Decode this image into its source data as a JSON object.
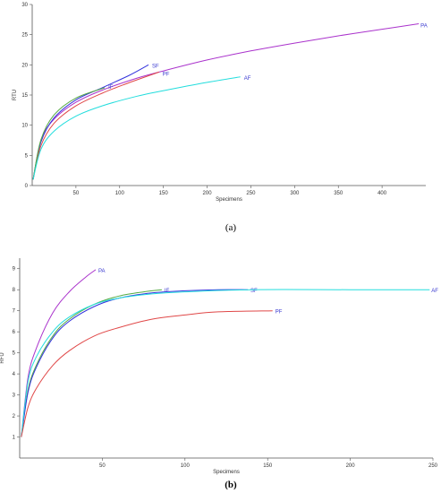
{
  "chart_data": [
    {
      "type": "line",
      "panel_label": "(a)",
      "title": "",
      "xlabel": "Specimens",
      "ylabel": "RTU",
      "xlim": [
        0,
        450
      ],
      "ylim": [
        0,
        30
      ],
      "x_ticks": [
        50,
        100,
        150,
        200,
        250,
        300,
        350,
        400
      ],
      "y_ticks": [
        0,
        5,
        10,
        15,
        20,
        25,
        30
      ],
      "grid": false,
      "legend": "none",
      "series": [
        {
          "name": "PA",
          "color": "#aa33cc",
          "x": [
            1,
            10,
            25,
            50,
            80,
            120,
            150,
            200,
            250,
            300,
            350,
            400,
            442
          ],
          "y": [
            1,
            7.5,
            11,
            13.8,
            15.8,
            17.8,
            19,
            20.8,
            22.3,
            23.6,
            24.8,
            25.9,
            26.8
          ]
        },
        {
          "name": "SF",
          "color": "#3333dd",
          "x": [
            1,
            10,
            25,
            50,
            80,
            110,
            133
          ],
          "y": [
            1,
            7.2,
            11.2,
            14.2,
            16.2,
            18.2,
            20
          ]
        },
        {
          "name": "PF",
          "color": "#e04848",
          "x": [
            1,
            10,
            25,
            50,
            80,
            110,
            145
          ],
          "y": [
            1,
            6.6,
            10.3,
            13.2,
            15.3,
            17,
            18.8
          ]
        },
        {
          "name": "IF",
          "color": "#55aa44",
          "x": [
            1,
            10,
            25,
            50,
            83
          ],
          "y": [
            1,
            7.6,
            11.7,
            14.5,
            16.2
          ]
        },
        {
          "name": "AF",
          "color": "#22dddd",
          "x": [
            1,
            10,
            25,
            50,
            80,
            120,
            160,
            200,
            238
          ],
          "y": [
            1,
            6,
            9,
            11.5,
            13.2,
            14.8,
            16,
            17.1,
            18
          ]
        }
      ]
    },
    {
      "type": "line",
      "panel_label": "(b)",
      "title": "",
      "xlabel": "Specimens",
      "ylabel": "RFU",
      "xlim": [
        0,
        250
      ],
      "ylim": [
        0,
        9.5
      ],
      "x_ticks": [
        50,
        100,
        150,
        200,
        250
      ],
      "y_ticks": [
        1,
        2,
        3,
        4,
        5,
        6,
        7,
        8,
        9
      ],
      "grid": false,
      "legend": "none",
      "series": [
        {
          "name": "PA",
          "color": "#aa33cc",
          "x": [
            1,
            5,
            10,
            20,
            30,
            40,
            46
          ],
          "y": [
            1,
            3.8,
            5.2,
            6.9,
            7.9,
            8.6,
            8.95
          ]
        },
        {
          "name": "IF",
          "color": "#55aa44",
          "x": [
            1,
            5,
            10,
            20,
            30,
            45,
            60,
            75,
            86
          ],
          "y": [
            1,
            3.2,
            4.4,
            5.8,
            6.6,
            7.3,
            7.7,
            7.9,
            8
          ]
        },
        {
          "name": "SF",
          "color": "#3333dd",
          "x": [
            1,
            5,
            10,
            20,
            30,
            45,
            60,
            80,
            100,
            120,
            138
          ],
          "y": [
            1,
            3.1,
            4.3,
            5.7,
            6.5,
            7.2,
            7.6,
            7.85,
            7.95,
            8,
            8
          ]
        },
        {
          "name": "AF",
          "color": "#22dddd",
          "x": [
            1,
            5,
            10,
            20,
            30,
            45,
            60,
            80,
            100,
            140,
            200,
            248
          ],
          "y": [
            1,
            3.6,
            4.8,
            6,
            6.7,
            7.3,
            7.6,
            7.8,
            7.9,
            8,
            8,
            8
          ]
        },
        {
          "name": "PF",
          "color": "#e04848",
          "x": [
            1,
            5,
            10,
            20,
            30,
            45,
            60,
            80,
            100,
            120,
            153
          ],
          "y": [
            1,
            2.4,
            3.3,
            4.4,
            5.1,
            5.8,
            6.2,
            6.6,
            6.8,
            6.95,
            7
          ]
        }
      ]
    }
  ]
}
